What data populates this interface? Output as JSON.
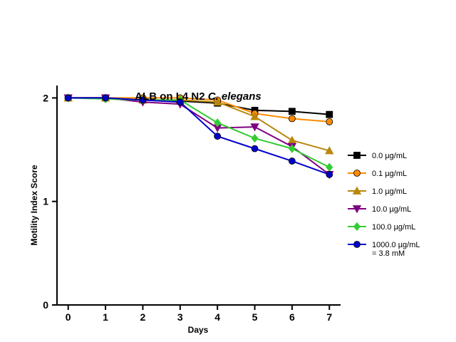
{
  "chart_data": {
    "type": "line",
    "title_main": "ALB on L4 N2 ",
    "title_italic": "C. elegans",
    "xlabel": "Days",
    "ylabel": "Motility Index Score",
    "x": [
      0,
      1,
      2,
      3,
      4,
      5,
      6,
      7
    ],
    "xlim": [
      -0.3,
      7.3
    ],
    "ylim": [
      0,
      2.12
    ],
    "yticks": [
      0,
      1,
      2
    ],
    "grid": false,
    "legend_position": "right",
    "series": [
      {
        "name": "0.0 µg/mL",
        "color": "#000000",
        "marker": "square",
        "values": [
          2.0,
          2.0,
          1.98,
          1.97,
          1.95,
          1.88,
          1.87,
          1.84
        ]
      },
      {
        "name": "0.1 µg/mL",
        "color": "#ff8c00",
        "marker": "circle",
        "values": [
          2.0,
          2.0,
          2.0,
          2.0,
          1.98,
          1.85,
          1.8,
          1.77
        ]
      },
      {
        "name": "1.0 µg/mL",
        "color": "#b8860b",
        "marker": "triangle-up",
        "values": [
          2.0,
          2.0,
          1.98,
          1.98,
          1.96,
          1.82,
          1.59,
          1.49
        ]
      },
      {
        "name": "10.0 µg/mL",
        "color": "#800080",
        "marker": "triangle-down",
        "values": [
          2.0,
          2.0,
          1.96,
          1.94,
          1.71,
          1.72,
          1.53,
          1.26
        ]
      },
      {
        "name": "100.0 µg/mL",
        "color": "#33cc33",
        "marker": "diamond",
        "values": [
          2.0,
          1.99,
          1.98,
          1.98,
          1.76,
          1.61,
          1.51,
          1.33
        ]
      },
      {
        "name": "1000.0 µg/mL\n= 3.8 mM",
        "color": "#0000cc",
        "marker": "circle",
        "values": [
          2.0,
          2.0,
          1.98,
          1.96,
          1.63,
          1.51,
          1.39,
          1.26
        ]
      }
    ]
  }
}
